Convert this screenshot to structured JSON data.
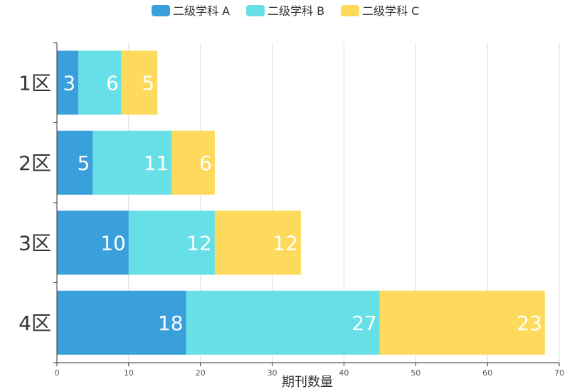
{
  "chart_data": {
    "type": "bar",
    "orientation": "horizontal",
    "stacked": true,
    "categories": [
      "1区",
      "2区",
      "3区",
      "4区"
    ],
    "series": [
      {
        "name": "二级学科 A",
        "color": "#3aa0dc",
        "values": [
          3,
          5,
          10,
          18
        ]
      },
      {
        "name": "二级学科 B",
        "color": "#66e0e6",
        "values": [
          6,
          11,
          12,
          27
        ]
      },
      {
        "name": "二级学科 C",
        "color": "#fdd95c",
        "values": [
          5,
          6,
          12,
          23
        ]
      }
    ],
    "xlabel": "期刊数量",
    "ylabel": "",
    "xlim": [
      0,
      70
    ],
    "xticks": [
      0,
      10,
      20,
      30,
      40,
      50,
      60,
      70
    ],
    "grid": "vertical",
    "legend": "top-center",
    "data_labels": true
  }
}
